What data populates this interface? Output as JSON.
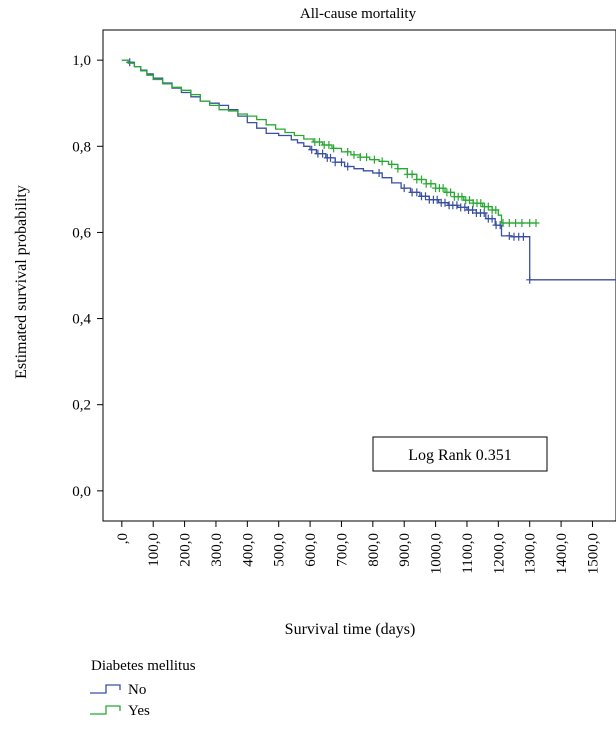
{
  "chart_data": {
    "type": "line",
    "title": "All-cause mortality",
    "xlabel": "Survival time (days)",
    "ylabel": "Estimated survival probability",
    "xlim": [
      -60,
      1575
    ],
    "ylim": [
      -0.07,
      1.07
    ],
    "x_ticks": [
      0,
      100,
      200,
      300,
      400,
      500,
      600,
      700,
      800,
      900,
      1000,
      1100,
      1200,
      1300,
      1400,
      1500
    ],
    "x_tick_labels": [
      ",0",
      "100,0",
      "200,0",
      "300,0",
      "400,0",
      "500,0",
      "600,0",
      "700,0",
      "800,0",
      "900,0",
      "1000,0",
      "1100,0",
      "1200,0",
      "1300,0",
      "1400,0",
      "1500,0"
    ],
    "y_ticks": [
      0.0,
      0.2,
      0.4,
      0.6,
      0.8,
      1.0
    ],
    "y_tick_labels": [
      "0,0",
      "0,2",
      "0,4",
      "0,6",
      "0,8",
      "1,0"
    ],
    "grid": false,
    "legend": {
      "title": "Diabetes mellitus",
      "position": "bottom-left, outside plot"
    },
    "annotation": "Log Rank 0.351",
    "series": [
      {
        "name": "No",
        "color": "#3a4fa0",
        "x": [
          0,
          20,
          40,
          60,
          80,
          100,
          130,
          160,
          190,
          220,
          250,
          280,
          310,
          340,
          370,
          400,
          430,
          460,
          500,
          540,
          560,
          580,
          600,
          620,
          650,
          680,
          710,
          740,
          770,
          800,
          830,
          860,
          890,
          920,
          950,
          980,
          1010,
          1040,
          1070,
          1100,
          1130,
          1160,
          1190,
          1210,
          1240,
          1270,
          1290,
          1300,
          1575
        ],
        "y": [
          1.0,
          0.995,
          0.985,
          0.977,
          0.968,
          0.958,
          0.947,
          0.935,
          0.925,
          0.915,
          0.905,
          0.9,
          0.895,
          0.885,
          0.87,
          0.855,
          0.842,
          0.83,
          0.825,
          0.815,
          0.808,
          0.8,
          0.792,
          0.783,
          0.773,
          0.763,
          0.753,
          0.748,
          0.743,
          0.738,
          0.727,
          0.715,
          0.703,
          0.693,
          0.684,
          0.676,
          0.669,
          0.663,
          0.658,
          0.652,
          0.645,
          0.632,
          0.617,
          0.592,
          0.59,
          0.59,
          0.59,
          0.49,
          0.49
        ],
        "censor_x": [
          25,
          605,
          625,
          640,
          655,
          665,
          680,
          700,
          720,
          820,
          900,
          925,
          940,
          955,
          968,
          980,
          993,
          1005,
          1018,
          1030,
          1043,
          1055,
          1068,
          1080,
          1093,
          1105,
          1118,
          1130,
          1143,
          1155,
          1168,
          1180,
          1193,
          1206,
          1235,
          1250,
          1265,
          1280,
          1300
        ]
      },
      {
        "name": "Yes",
        "color": "#28a832",
        "x": [
          0,
          20,
          40,
          60,
          80,
          100,
          130,
          160,
          190,
          220,
          250,
          280,
          310,
          340,
          370,
          400,
          430,
          460,
          490,
          520,
          550,
          580,
          610,
          640,
          670,
          700,
          730,
          760,
          790,
          820,
          850,
          880,
          910,
          940,
          970,
          1000,
          1030,
          1060,
          1090,
          1120,
          1150,
          1180,
          1200,
          1210,
          1320
        ],
        "y": [
          1.0,
          0.993,
          0.985,
          0.975,
          0.965,
          0.955,
          0.945,
          0.937,
          0.93,
          0.92,
          0.905,
          0.895,
          0.885,
          0.882,
          0.875,
          0.87,
          0.862,
          0.85,
          0.84,
          0.832,
          0.825,
          0.817,
          0.81,
          0.803,
          0.795,
          0.787,
          0.78,
          0.775,
          0.769,
          0.765,
          0.758,
          0.748,
          0.735,
          0.723,
          0.713,
          0.703,
          0.693,
          0.683,
          0.675,
          0.668,
          0.66,
          0.652,
          0.64,
          0.622,
          0.622
        ],
        "censor_x": [
          615,
          630,
          645,
          660,
          675,
          720,
          740,
          760,
          780,
          805,
          830,
          860,
          880,
          910,
          925,
          940,
          955,
          970,
          985,
          1000,
          1012,
          1024,
          1036,
          1048,
          1060,
          1072,
          1084,
          1096,
          1108,
          1120,
          1132,
          1144,
          1156,
          1168,
          1180,
          1192,
          1215,
          1235,
          1255,
          1275,
          1300,
          1320
        ]
      }
    ]
  }
}
